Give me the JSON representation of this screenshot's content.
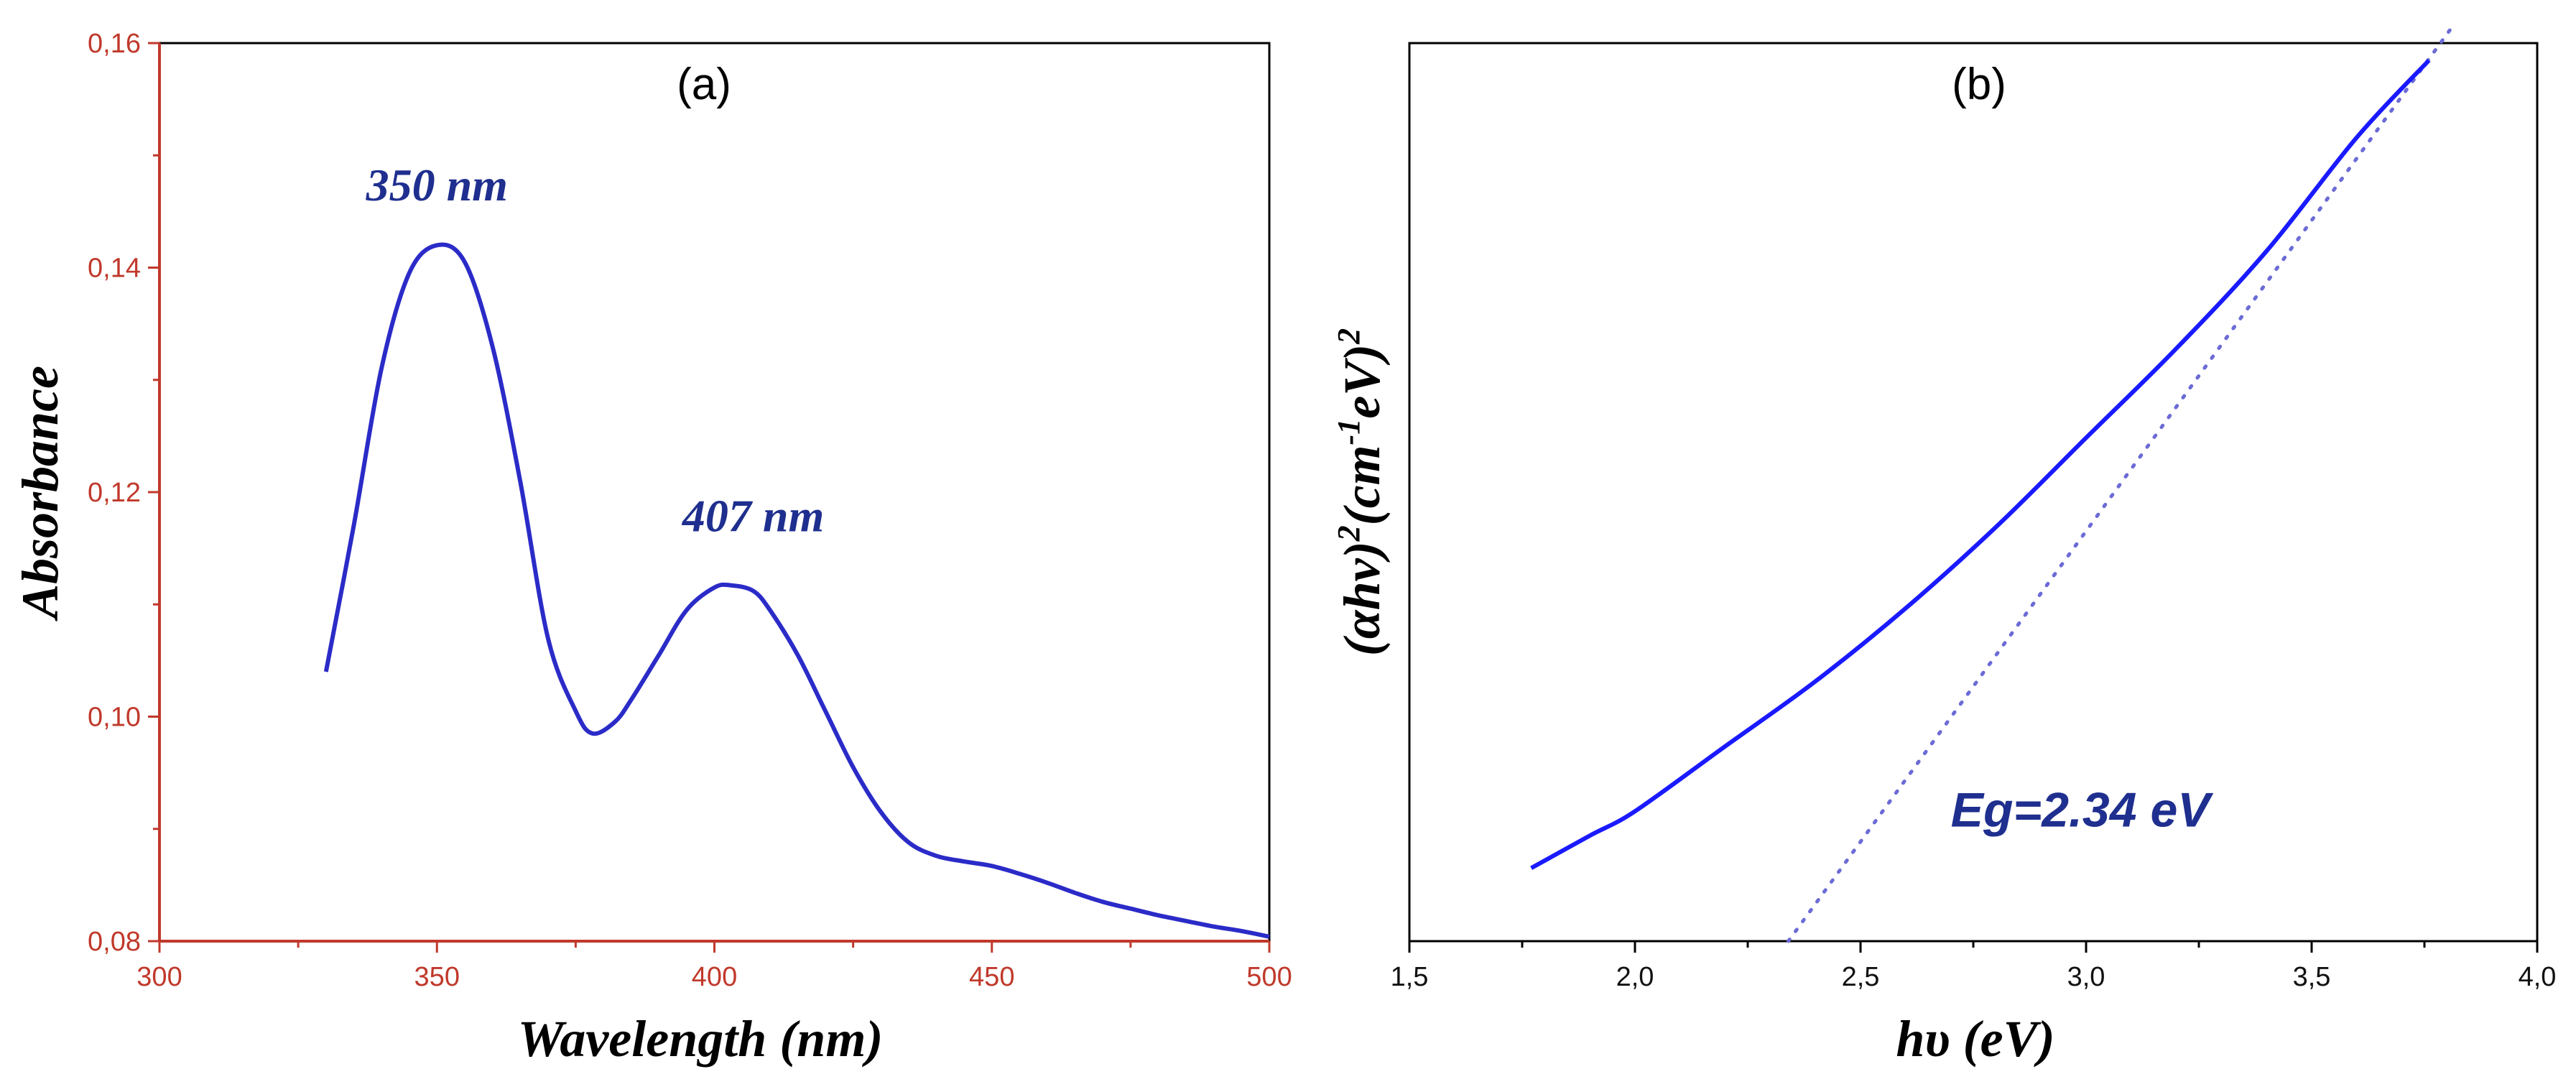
{
  "chart_data": [
    {
      "type": "line",
      "panel": "(a)",
      "xlabel": "Wavelength (nm)",
      "ylabel": "Absorbance",
      "xlim": [
        300,
        500
      ],
      "ylim": [
        0.08,
        0.16
      ],
      "x_ticks": [
        "300",
        "350",
        "400",
        "450",
        "500"
      ],
      "y_ticks": [
        "0,08",
        "0,10",
        "0,12",
        "0,14",
        "0,16"
      ],
      "grid": false,
      "axis_color": "#c0392b",
      "series": [
        {
          "name": "absorbance",
          "color": "#2b2bc8",
          "x": [
            330,
            335,
            340,
            345,
            350,
            355,
            360,
            365,
            370,
            375,
            378,
            382,
            385,
            390,
            395,
            400,
            403,
            407,
            410,
            415,
            420,
            425,
            430,
            435,
            440,
            445,
            450,
            455,
            460,
            465,
            470,
            475,
            480,
            485,
            490,
            495,
            500
          ],
          "y": [
            0.104,
            0.117,
            0.131,
            0.1395,
            0.142,
            0.1405,
            0.133,
            0.121,
            0.107,
            0.1005,
            0.0985,
            0.0995,
            0.1015,
            0.1055,
            0.1095,
            0.1115,
            0.1117,
            0.1112,
            0.1095,
            0.1055,
            0.1005,
            0.0955,
            0.0915,
            0.0888,
            0.0876,
            0.0871,
            0.0867,
            0.086,
            0.0852,
            0.0843,
            0.0835,
            0.0829,
            0.0823,
            0.0818,
            0.0813,
            0.0809,
            0.0804
          ]
        }
      ],
      "annotations": [
        {
          "text": "350 nm",
          "x": 350,
          "y": 0.146
        },
        {
          "text": "407 nm",
          "x": 407,
          "y": 0.1165
        }
      ]
    },
    {
      "type": "line",
      "panel": "(b)",
      "xlabel": "hυ (eV)",
      "ylabel_parts": [
        "(αhν)",
        "2",
        "(cm",
        "-1",
        "eV)",
        "2"
      ],
      "xlim": [
        1.5,
        4.0
      ],
      "ylim": [
        0,
        1
      ],
      "x_ticks": [
        "1,5",
        "2,0",
        "2,5",
        "3,0",
        "3,5",
        "4,0"
      ],
      "y_ticks": [],
      "grid": false,
      "series": [
        {
          "name": "tauc-plot",
          "color": "#1a1aff",
          "style": "solid",
          "x": [
            1.77,
            1.9,
            2.0,
            2.2,
            2.4,
            2.6,
            2.8,
            3.0,
            3.2,
            3.4,
            3.6,
            3.76
          ],
          "y": [
            0.09,
            0.13,
            0.16,
            0.24,
            0.32,
            0.41,
            0.51,
            0.62,
            0.73,
            0.85,
            0.99,
            1.085
          ]
        },
        {
          "name": "linear-fit",
          "color": "#6b6bd6",
          "style": "dotted",
          "x": [
            2.34,
            3.81
          ],
          "y": [
            0.0,
            1.125
          ]
        }
      ],
      "annotations": [
        {
          "text": "Eg=2.34 eV",
          "x": 2.7,
          "y": 0.09
        }
      ]
    }
  ]
}
